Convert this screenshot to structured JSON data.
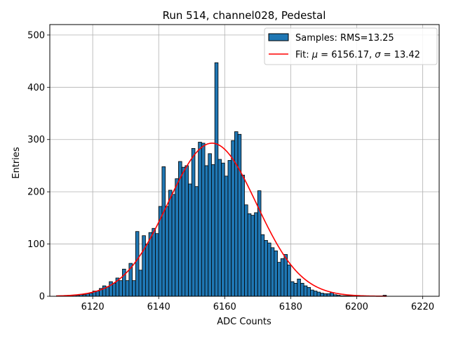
{
  "chart_data": {
    "type": "bar",
    "title": "Run 514, channel028, Pedestal",
    "xlabel": "ADC Counts",
    "ylabel": "Entries",
    "xlim": [
      6107,
      6225
    ],
    "ylim": [
      0,
      520
    ],
    "xticks": [
      6120,
      6140,
      6160,
      6180,
      6200,
      6220
    ],
    "yticks": [
      0,
      100,
      200,
      300,
      400,
      500
    ],
    "grid": true,
    "legend_position": "top-right",
    "bin_width": 1,
    "bar_color": "#1f77b4",
    "fit_color": "#ff0000",
    "histogram": {
      "name": "Samples: RMS=13.25",
      "x": [
        6109,
        6110,
        6111,
        6112,
        6113,
        6114,
        6115,
        6116,
        6117,
        6118,
        6119,
        6120,
        6121,
        6122,
        6123,
        6124,
        6125,
        6126,
        6127,
        6128,
        6129,
        6130,
        6131,
        6132,
        6133,
        6134,
        6135,
        6136,
        6137,
        6138,
        6139,
        6140,
        6141,
        6142,
        6143,
        6144,
        6145,
        6146,
        6147,
        6148,
        6149,
        6150,
        6151,
        6152,
        6153,
        6154,
        6155,
        6156,
        6157,
        6158,
        6159,
        6160,
        6161,
        6162,
        6163,
        6164,
        6165,
        6166,
        6167,
        6168,
        6169,
        6170,
        6171,
        6172,
        6173,
        6174,
        6175,
        6176,
        6177,
        6178,
        6179,
        6180,
        6181,
        6182,
        6183,
        6184,
        6185,
        6186,
        6187,
        6188,
        6189,
        6190,
        6191,
        6192,
        6193,
        6194,
        6195,
        6196,
        6197,
        6198,
        6199,
        6200,
        6201,
        6202,
        6203,
        6204,
        6205,
        6206,
        6207,
        6208
      ],
      "values": [
        1,
        1,
        1,
        1,
        2,
        2,
        2,
        3,
        3,
        5,
        6,
        10,
        10,
        15,
        20,
        18,
        28,
        25,
        35,
        30,
        52,
        30,
        63,
        30,
        124,
        50,
        116,
        100,
        122,
        130,
        120,
        172,
        248,
        172,
        203,
        195,
        225,
        258,
        247,
        250,
        215,
        283,
        210,
        295,
        293,
        250,
        273,
        252,
        447,
        262,
        255,
        230,
        260,
        298,
        315,
        310,
        232,
        175,
        158,
        155,
        160,
        202,
        118,
        107,
        102,
        93,
        87,
        65,
        72,
        80,
        60,
        28,
        25,
        33,
        25,
        20,
        17,
        12,
        10,
        8,
        6,
        5,
        5,
        7,
        3,
        2,
        1,
        1,
        1,
        1,
        1,
        1,
        0,
        0,
        0,
        0,
        0,
        0,
        0,
        2
      ]
    },
    "fit": {
      "name": "Fit: μ = 6156.17, σ = 13.42",
      "mu": 6156.17,
      "sigma": 13.42,
      "peak": 293,
      "x_range": [
        6109,
        6209
      ]
    },
    "legend": [
      {
        "label_text": "Samples: RMS=13.25",
        "kind": "patch",
        "color": "#1f77b4"
      },
      {
        "label_plain": "Fit: ",
        "mu_symbol": "μ",
        "mu_text": " = 6156.17, ",
        "sigma_symbol": "σ",
        "sigma_text": " = 13.42",
        "kind": "line",
        "color": "#ff0000"
      }
    ]
  }
}
